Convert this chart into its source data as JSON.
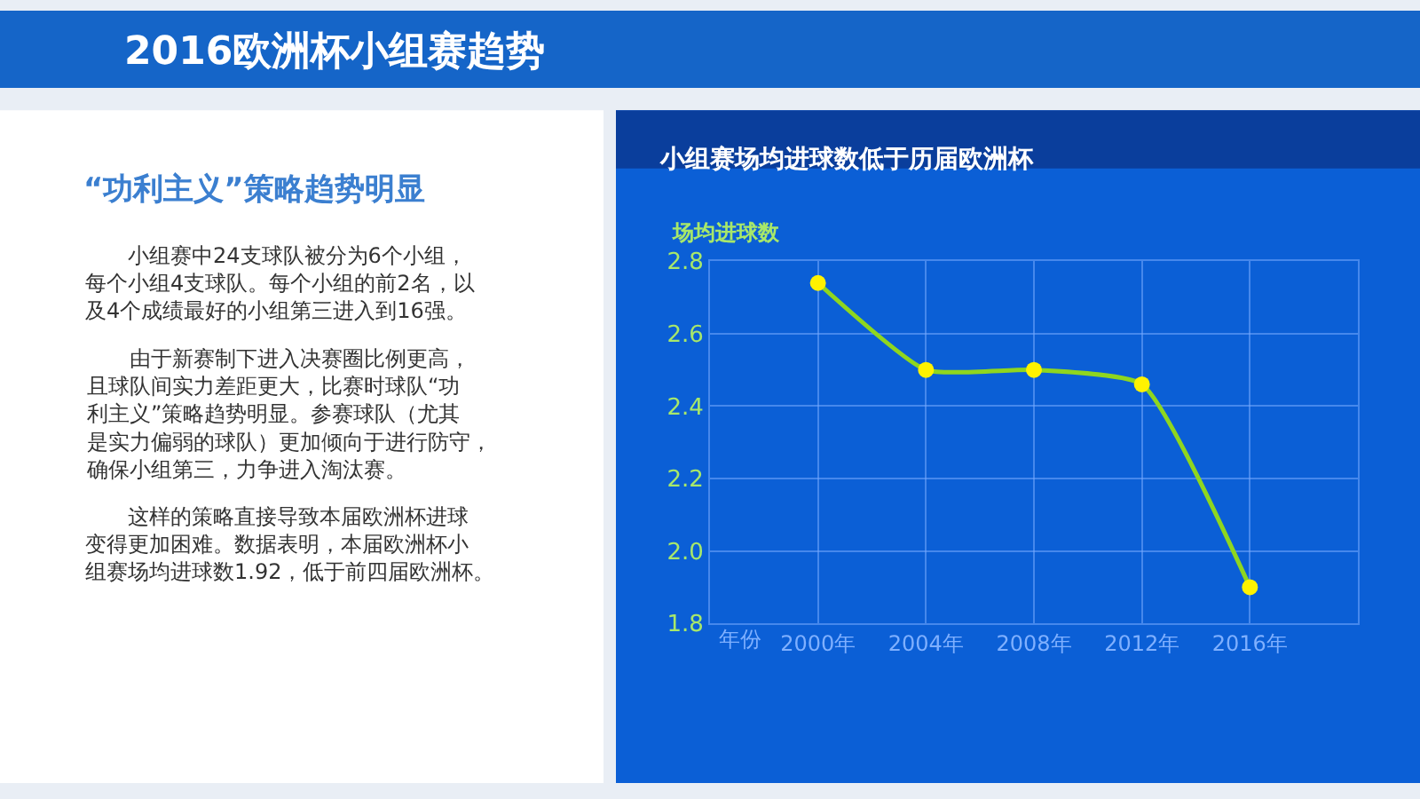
{
  "chart_data": [
    {
      "type": "other",
      "title": "2016欧洲杯小组赛趋势",
      "subtitle": "“功利主义”策略趋势明显",
      "annotations": [
        "小组赛中24支球队被分为6个小组，每个小组4支球队。每个小组的前2名，以及4个成绩最好的小组第三进入到16强。",
        "由于新赛制下进入决赛圈比例更高，且球队间实力差距更大，比赛时球队“功利主义”策略趋势明显。参赛球队（尤其是实力偏弱的球队）更加倾向于进行防守，确保小组第三，力争进入淘汰赛。",
        "这样的策略直接导致本届欧洲杯进球变得更加困难。数据表明，本届欧洲杯小组赛场均进球数1.92，低于前四届欧洲杯。"
      ]
    },
    {
      "type": "line",
      "title": "小组赛场均进球数低于历届欧洲杯",
      "xlabel": "年份",
      "ylabel": "场均进球数",
      "categories": [
        "2000年",
        "2004年",
        "2008年",
        "2012年",
        "2016年"
      ],
      "series": [
        {
          "color": "#8fd61f",
          "values": [
            2.74,
            2.5,
            2.5,
            2.46,
            1.9
          ]
        }
      ],
      "ylim": [
        1.8,
        2.8
      ],
      "yticks": [
        1.8,
        {
          "value": 2,
          "label": "2.0"
        },
        2.2,
        2.4,
        2.6,
        2.8
      ],
      "grid": true,
      "marker": "circle",
      "line_style": "solid"
    }
  ]
}
